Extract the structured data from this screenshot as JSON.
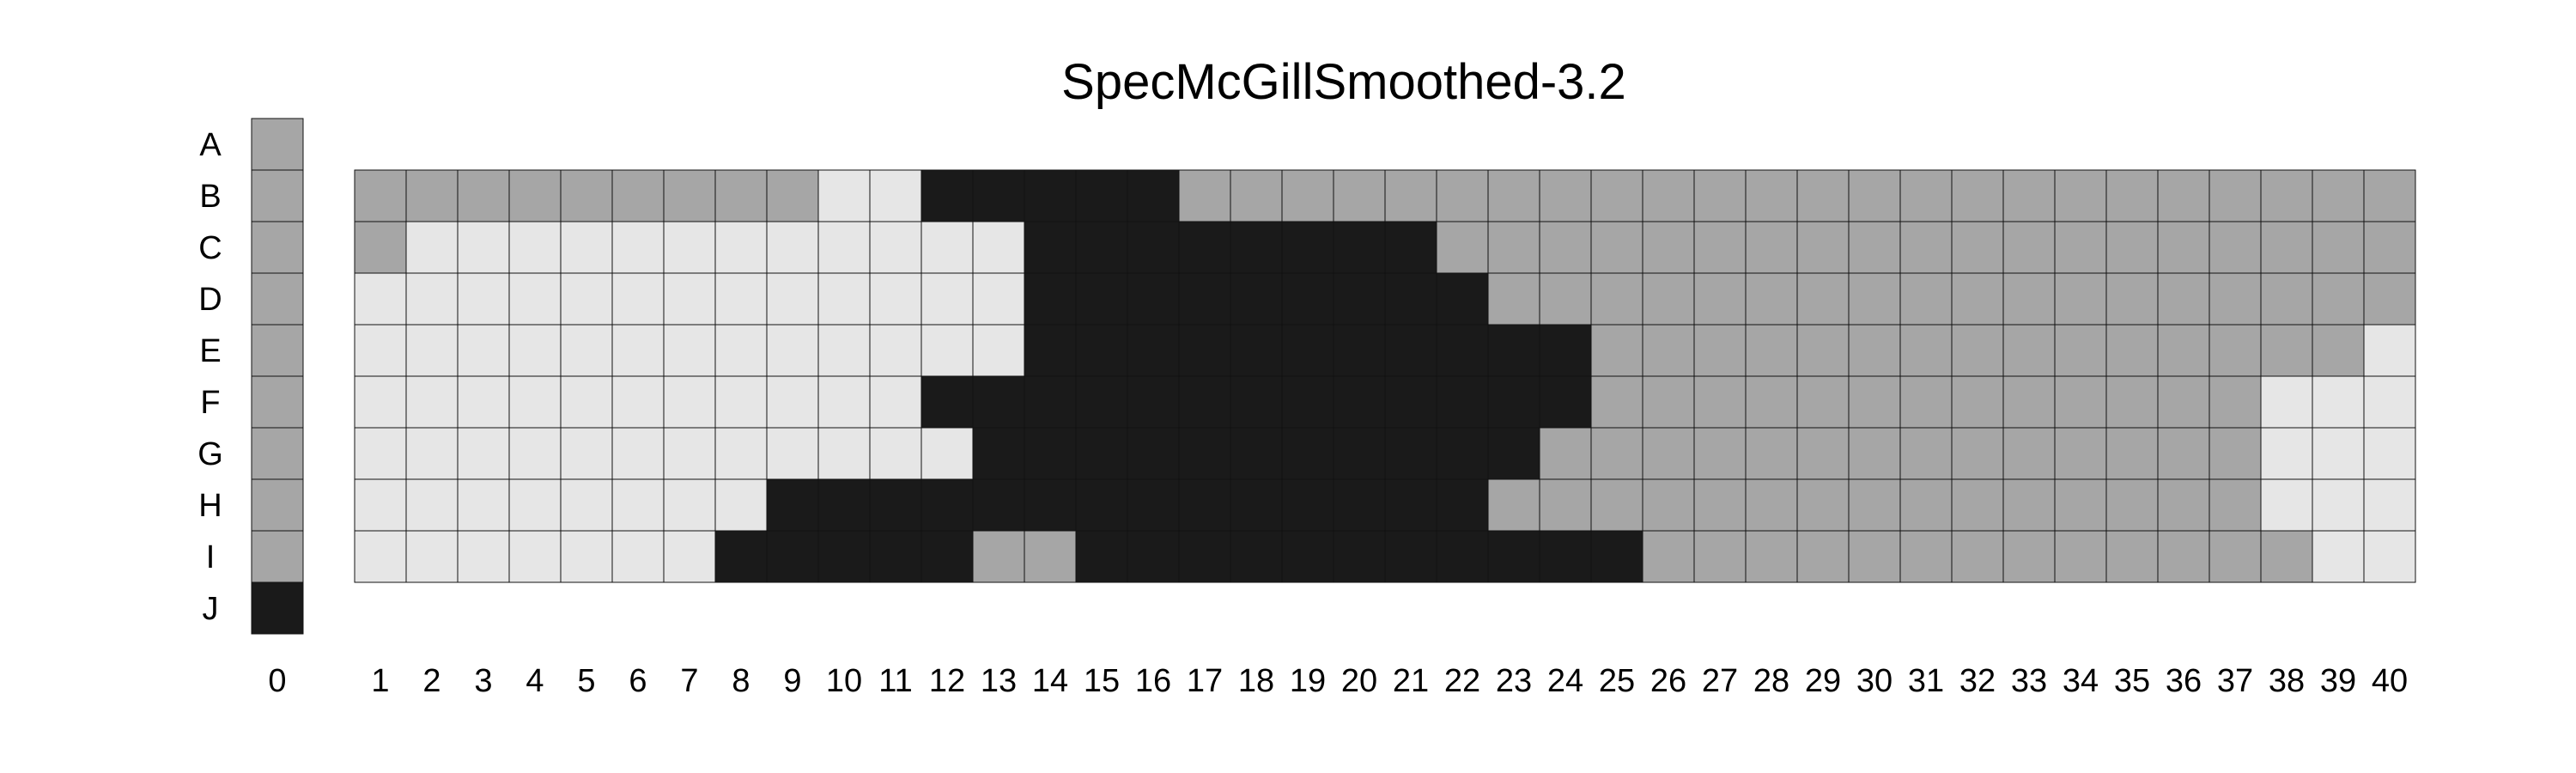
{
  "chart_data": {
    "type": "heatmap",
    "title": "SpecMcGillSmoothed-3.2",
    "row_labels": [
      "A",
      "B",
      "C",
      "D",
      "E",
      "F",
      "G",
      "H",
      "I",
      "J"
    ],
    "column_labels": [
      "1",
      "2",
      "3",
      "4",
      "5",
      "6",
      "7",
      "8",
      "9",
      "10",
      "11",
      "12",
      "13",
      "14",
      "15",
      "16",
      "17",
      "18",
      "19",
      "20",
      "21",
      "22",
      "23",
      "24",
      "25",
      "26",
      "27",
      "28",
      "29",
      "30",
      "31",
      "32",
      "33",
      "34",
      "35",
      "36",
      "37",
      "38",
      "39",
      "40"
    ],
    "reference_column": {
      "label": "0",
      "values": [
        2,
        2,
        2,
        2,
        2,
        2,
        2,
        2,
        2,
        3
      ]
    },
    "levels": {
      "1": "#e6e6e6",
      "2": "#a6a6a6",
      "3": "#1a1a1a"
    },
    "matrix_rows": [
      "B",
      "C",
      "D",
      "E",
      "F",
      "G",
      "H",
      "I"
    ],
    "values": [
      [
        2,
        2,
        2,
        2,
        2,
        2,
        2,
        2,
        2,
        1,
        1,
        3,
        3,
        3,
        3,
        3,
        2,
        2,
        2,
        2,
        2,
        2,
        2,
        2,
        2,
        2,
        2,
        2,
        2,
        2,
        2,
        2,
        2,
        2,
        2,
        2,
        2,
        2,
        2,
        2
      ],
      [
        2,
        1,
        1,
        1,
        1,
        1,
        1,
        1,
        1,
        1,
        1,
        1,
        1,
        3,
        3,
        3,
        3,
        3,
        3,
        3,
        3,
        2,
        2,
        2,
        2,
        2,
        2,
        2,
        2,
        2,
        2,
        2,
        2,
        2,
        2,
        2,
        2,
        2,
        2,
        2
      ],
      [
        1,
        1,
        1,
        1,
        1,
        1,
        1,
        1,
        1,
        1,
        1,
        1,
        1,
        3,
        3,
        3,
        3,
        3,
        3,
        3,
        3,
        3,
        2,
        2,
        2,
        2,
        2,
        2,
        2,
        2,
        2,
        2,
        2,
        2,
        2,
        2,
        2,
        2,
        2,
        2
      ],
      [
        1,
        1,
        1,
        1,
        1,
        1,
        1,
        1,
        1,
        1,
        1,
        1,
        1,
        3,
        3,
        3,
        3,
        3,
        3,
        3,
        3,
        3,
        3,
        3,
        2,
        2,
        2,
        2,
        2,
        2,
        2,
        2,
        2,
        2,
        2,
        2,
        2,
        2,
        2,
        1
      ],
      [
        1,
        1,
        1,
        1,
        1,
        1,
        1,
        1,
        1,
        1,
        1,
        3,
        3,
        3,
        3,
        3,
        3,
        3,
        3,
        3,
        3,
        3,
        3,
        3,
        2,
        2,
        2,
        2,
        2,
        2,
        2,
        2,
        2,
        2,
        2,
        2,
        2,
        1,
        1,
        1
      ],
      [
        1,
        1,
        1,
        1,
        1,
        1,
        1,
        1,
        1,
        1,
        1,
        1,
        3,
        3,
        3,
        3,
        3,
        3,
        3,
        3,
        3,
        3,
        3,
        2,
        2,
        2,
        2,
        2,
        2,
        2,
        2,
        2,
        2,
        2,
        2,
        2,
        2,
        1,
        1,
        1
      ],
      [
        1,
        1,
        1,
        1,
        1,
        1,
        1,
        1,
        3,
        3,
        3,
        3,
        3,
        3,
        3,
        3,
        3,
        3,
        3,
        3,
        3,
        3,
        2,
        2,
        2,
        2,
        2,
        2,
        2,
        2,
        2,
        2,
        2,
        2,
        2,
        2,
        2,
        1,
        1,
        1
      ],
      [
        1,
        1,
        1,
        1,
        1,
        1,
        1,
        3,
        3,
        3,
        3,
        3,
        2,
        2,
        3,
        3,
        3,
        3,
        3,
        3,
        3,
        3,
        3,
        3,
        3,
        2,
        2,
        2,
        2,
        2,
        2,
        2,
        2,
        2,
        2,
        2,
        2,
        2,
        1,
        1
      ]
    ]
  }
}
